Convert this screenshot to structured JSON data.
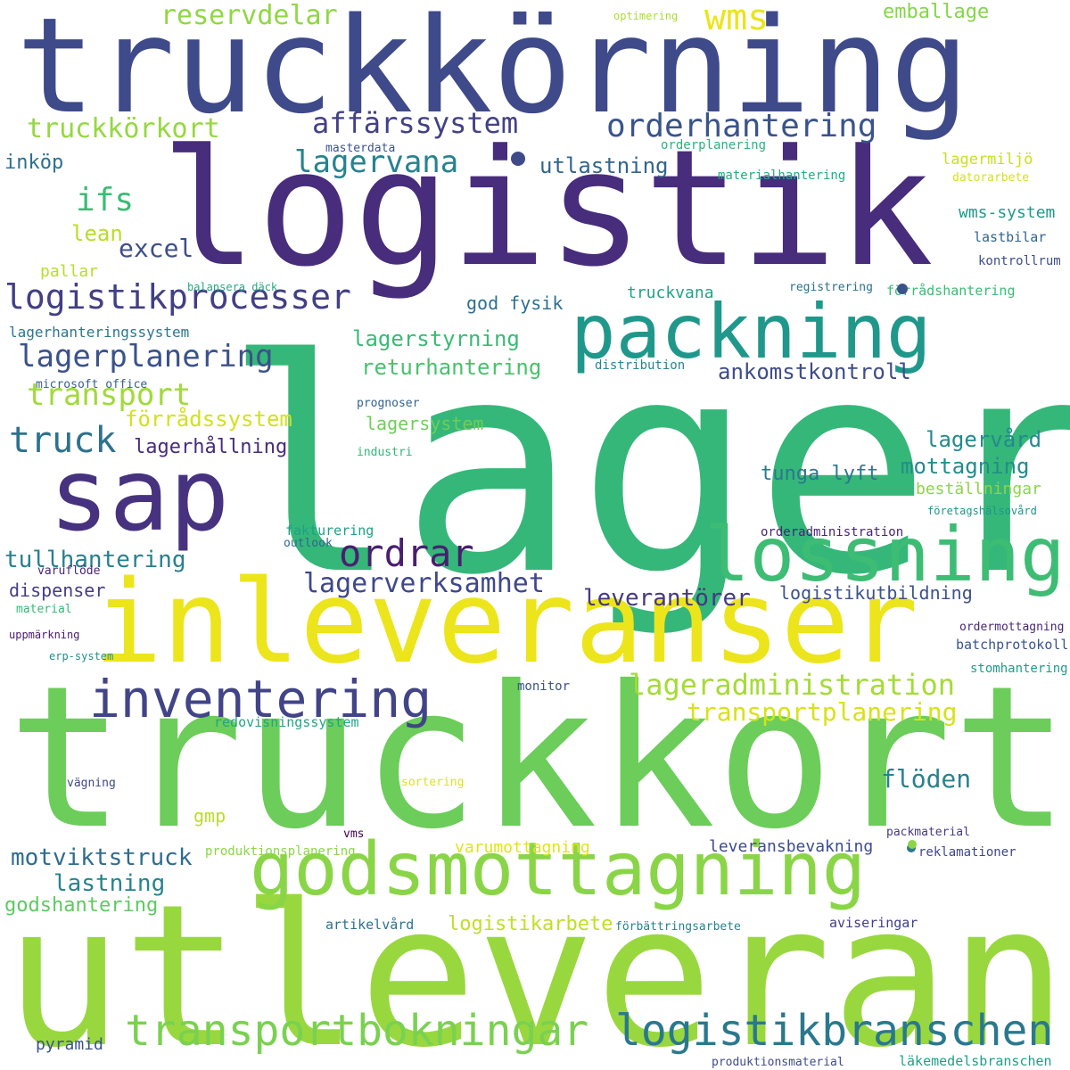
{
  "words": [
    {
      "text": "lager",
      "color": "#35b779"
    },
    {
      "text": "truckkort",
      "color": "#6ccd5a"
    },
    {
      "text": "utleveranser",
      "color": "#98d83e"
    },
    {
      "text": "logistik",
      "color": "#472d7b"
    },
    {
      "text": "truckkörning",
      "color": "#3e4a89"
    },
    {
      "text": "inleveranser",
      "color": "#ece51b"
    },
    {
      "text": "godsmottagning",
      "color": "#8ad547"
    },
    {
      "text": "packning",
      "color": "#1f988b"
    },
    {
      "text": "sap",
      "color": "#46327e"
    },
    {
      "text": "lossning",
      "color": "#3dbc74"
    },
    {
      "text": "transportbokningar",
      "color": "#7ad151"
    },
    {
      "text": "logistikbranschen",
      "color": "#2a788e"
    },
    {
      "text": "inventering",
      "color": "#414487"
    },
    {
      "text": "ordrar",
      "color": "#481f70"
    },
    {
      "text": "lagerverksamhet",
      "color": "#3f4889"
    },
    {
      "text": "lageradministration",
      "color": "#a5db36"
    },
    {
      "text": "transportplanering",
      "color": "#d8e219"
    },
    {
      "text": "logistikprocesser",
      "color": "#423f85"
    },
    {
      "text": "lagerplanering",
      "color": "#3b528b"
    },
    {
      "text": "transport",
      "color": "#a0da39"
    },
    {
      "text": "truck",
      "color": "#2c728e"
    },
    {
      "text": "affärssystem",
      "color": "#424186"
    },
    {
      "text": "orderhantering",
      "color": "#3a548c"
    },
    {
      "text": "lagervana",
      "color": "#26828e"
    },
    {
      "text": "truckkörkort",
      "color": "#95d840"
    },
    {
      "text": "reservdelar",
      "color": "#90d743"
    },
    {
      "text": "wms",
      "color": "#eae51a"
    },
    {
      "text": "emballage",
      "color": "#86d549"
    },
    {
      "text": "ifs",
      "color": "#3bbb75"
    },
    {
      "text": "excel",
      "color": "#3d4e8a"
    },
    {
      "text": "lean",
      "color": "#b8de29"
    },
    {
      "text": "pallar",
      "color": "#b5de2b"
    },
    {
      "text": "inköp",
      "color": "#2d708e"
    },
    {
      "text": "utlastning",
      "color": "#32658e"
    },
    {
      "text": "lagerstyrning",
      "color": "#3aba76"
    },
    {
      "text": "returhantering",
      "color": "#4ac16d"
    },
    {
      "text": "ankomstkontroll",
      "color": "#3e4c8a"
    },
    {
      "text": "förrådssystem",
      "color": "#d2e21b"
    },
    {
      "text": "lagerhållning",
      "color": "#472c7a"
    },
    {
      "text": "lagersystem",
      "color": "#6ece58"
    },
    {
      "text": "lagervård",
      "color": "#238a8d"
    },
    {
      "text": "mottagning",
      "color": "#228c8d"
    },
    {
      "text": "tunga lyft",
      "color": "#2a788e"
    },
    {
      "text": "beställningar",
      "color": "#8bd646"
    },
    {
      "text": "tullhantering",
      "color": "#27808e"
    },
    {
      "text": "dispenser",
      "color": "#433e85"
    },
    {
      "text": "leverantörer",
      "color": "#443983"
    },
    {
      "text": "logistikutbildning",
      "color": "#3b528b"
    },
    {
      "text": "flöden",
      "color": "#26828e"
    },
    {
      "text": "gmp",
      "color": "#bade28"
    },
    {
      "text": "motviktstruck",
      "color": "#2f6c8e"
    },
    {
      "text": "lastning",
      "color": "#25848e"
    },
    {
      "text": "godshantering",
      "color": "#5ec962"
    },
    {
      "text": "logistikarbete",
      "color": "#c0df25"
    },
    {
      "text": "varumottagning",
      "color": "#e2e418"
    },
    {
      "text": "leveransbevakning",
      "color": "#3d4d8a"
    },
    {
      "text": "reklamationer",
      "color": "#3f4788"
    },
    {
      "text": "pyramid",
      "color": "#3b528b"
    },
    {
      "text": "god fysik",
      "color": "#2e6f8e"
    },
    {
      "text": "truckvana",
      "color": "#20a386"
    },
    {
      "text": "lagermiljö",
      "color": "#c8e020"
    },
    {
      "text": "wms-system",
      "color": "#1f9a8a"
    },
    {
      "text": "lastbilar",
      "color": "#32648e"
    },
    {
      "text": "kontrollrum",
      "color": "#3d4e8a"
    },
    {
      "text": "förrådshantering",
      "color": "#3bbb75"
    },
    {
      "text": "registrering",
      "color": "#2c718e"
    },
    {
      "text": "lagerhanteringssystem",
      "color": "#2a778e"
    },
    {
      "text": "microsoft office",
      "color": "#355f8d"
    },
    {
      "text": "balansera däck",
      "color": "#23a983"
    },
    {
      "text": "distribution",
      "color": "#25848e"
    },
    {
      "text": "prognoser",
      "color": "#33638d"
    },
    {
      "text": "industri",
      "color": "#32b67a"
    },
    {
      "text": "fakturering",
      "color": "#1fa088"
    },
    {
      "text": "outlook",
      "color": "#31668e"
    },
    {
      "text": "varuflöde",
      "color": "#482576"
    },
    {
      "text": "material",
      "color": "#35b779"
    },
    {
      "text": "uppmärkning",
      "color": "#48196b"
    },
    {
      "text": "erp-system",
      "color": "#21908d"
    },
    {
      "text": "monitor",
      "color": "#3b528b"
    },
    {
      "text": "redovisningssystem",
      "color": "#21a685"
    },
    {
      "text": "vägning",
      "color": "#3e4989"
    },
    {
      "text": "sortering",
      "color": "#dde318"
    },
    {
      "text": "vms",
      "color": "#440154"
    },
    {
      "text": "produktionsplanering",
      "color": "#8bd646"
    },
    {
      "text": "artikelvård",
      "color": "#2c728e"
    },
    {
      "text": "förbättringsarbete",
      "color": "#26828e"
    },
    {
      "text": "aviseringar",
      "color": "#424086"
    },
    {
      "text": "packmaterial",
      "color": "#443a83"
    },
    {
      "text": "produktionsmaterial",
      "color": "#3e4c8a"
    },
    {
      "text": "läkemedelsbranschen",
      "color": "#1fa187"
    },
    {
      "text": "stomhantering",
      "color": "#1e9c89"
    },
    {
      "text": "batchprotokoll",
      "color": "#3a548c"
    },
    {
      "text": "ordermottagning",
      "color": "#482677"
    },
    {
      "text": "orderadministration",
      "color": "#482475"
    },
    {
      "text": "företagshälsovård",
      "color": "#1f958b"
    },
    {
      "text": "masterdata",
      "color": "#3b528b"
    },
    {
      "text": "orderplanering",
      "color": "#2db27d"
    },
    {
      "text": "materialhantering",
      "color": "#25ab82"
    },
    {
      "text": "datorarbete",
      "color": "#d5e21a"
    },
    {
      "text": "optimering",
      "color": "#addc30"
    }
  ],
  "dots": [
    {
      "color": "#3e4a89"
    },
    {
      "color": "#3b528b"
    },
    {
      "color": "#2a788e"
    },
    {
      "color": "#8ad547"
    }
  ]
}
